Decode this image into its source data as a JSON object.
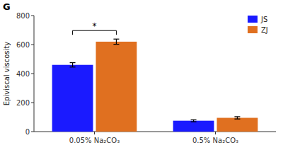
{
  "chart_data": {
    "type": "bar",
    "categories": [
      "0.05% Na₂CO₃",
      "0.5% Na₂CO₃"
    ],
    "series": [
      {
        "name": "JS",
        "color": "#1a1aff",
        "values": [
          460,
          75
        ],
        "errors": [
          15,
          7
        ]
      },
      {
        "name": "ZJ",
        "color": "#e07020",
        "values": [
          620,
          95
        ],
        "errors": [
          18,
          8
        ]
      }
    ],
    "y_label": "Epiviscal viscosity",
    "ylim": [
      0,
      800
    ],
    "yticks": [
      0,
      200,
      400,
      600,
      800
    ],
    "grid": false,
    "legend": "upper right",
    "annotations": [
      {
        "text": "*",
        "category": "0.05% Na₂CO₃"
      },
      {
        "text": "G"
      }
    ]
  }
}
